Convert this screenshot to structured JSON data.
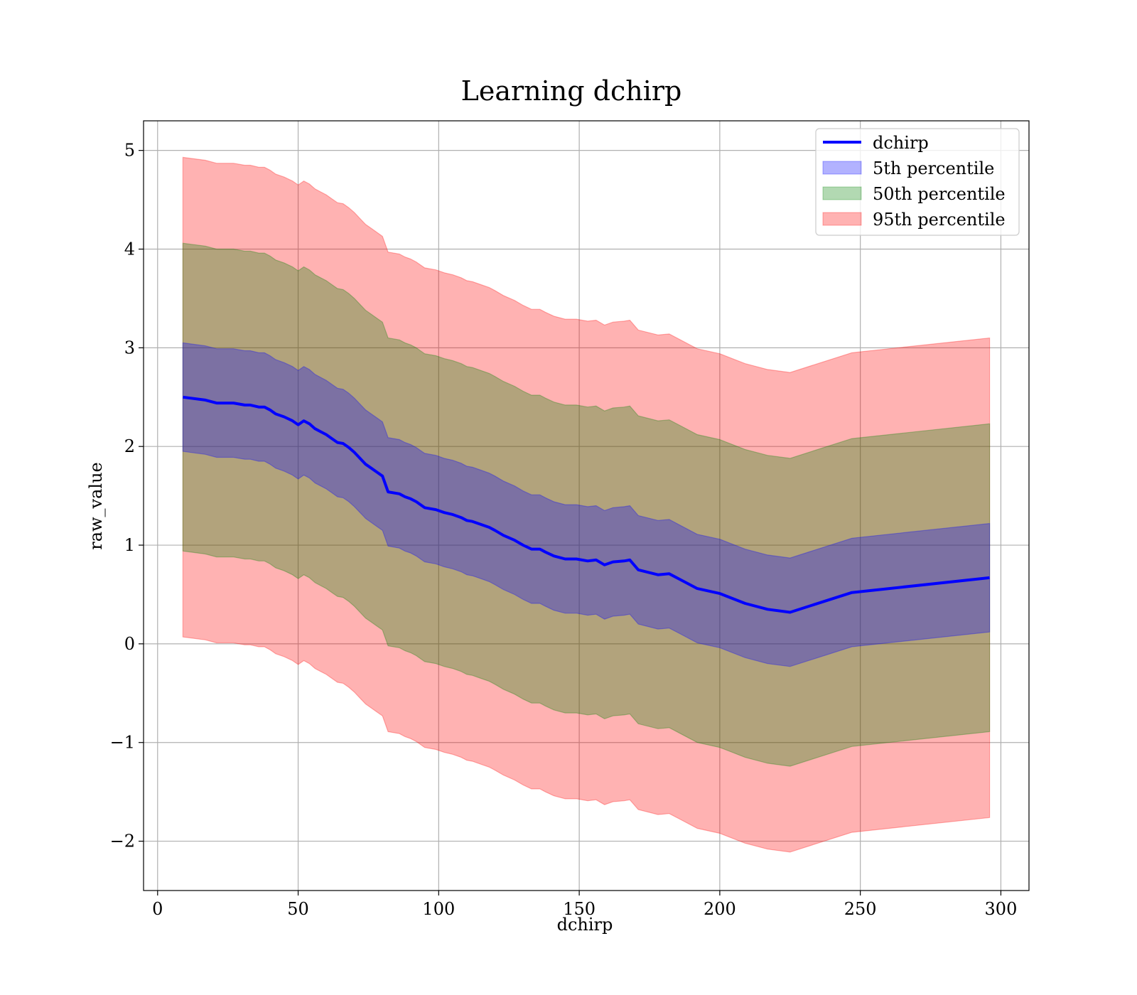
{
  "chart_data": {
    "type": "line",
    "title": "Learning dchirp",
    "xlabel": "dchirp",
    "ylabel": "raw_value",
    "xlim": [
      -5,
      310
    ],
    "ylim": [
      -2.5,
      5.3
    ],
    "xticks": [
      0,
      50,
      100,
      150,
      200,
      250,
      300
    ],
    "yticks": [
      -2,
      -1,
      0,
      1,
      2,
      3,
      4,
      5
    ],
    "xtick_labels": [
      "0",
      "50",
      "100",
      "150",
      "200",
      "250",
      "300"
    ],
    "ytick_labels": [
      "−2",
      "−1",
      "0",
      "1",
      "2",
      "3",
      "4",
      "5"
    ],
    "grid": true,
    "legend_position": "top-right",
    "x": [
      9,
      17,
      21,
      27,
      31,
      33,
      36,
      38,
      40,
      42,
      45,
      48,
      50,
      52,
      54,
      56,
      58,
      60,
      62,
      64,
      66,
      68,
      70,
      72,
      74,
      76,
      78,
      80,
      82,
      86,
      88,
      90,
      92,
      95,
      99,
      102,
      105,
      108,
      110,
      112,
      115,
      118,
      120,
      123,
      127,
      130,
      133,
      136,
      138,
      141,
      145,
      149,
      153,
      156,
      159,
      162,
      166,
      168,
      171,
      178,
      182,
      186,
      192,
      200,
      209,
      217,
      225,
      247,
      296
    ],
    "series": [
      {
        "name": "dchirp",
        "kind": "line",
        "color": "#0000ff",
        "values": [
          2.5,
          2.47,
          2.44,
          2.44,
          2.42,
          2.42,
          2.4,
          2.4,
          2.37,
          2.33,
          2.3,
          2.26,
          2.22,
          2.26,
          2.23,
          2.18,
          2.15,
          2.12,
          2.08,
          2.04,
          2.03,
          1.99,
          1.94,
          1.88,
          1.82,
          1.78,
          1.74,
          1.7,
          1.54,
          1.52,
          1.49,
          1.47,
          1.44,
          1.38,
          1.36,
          1.33,
          1.31,
          1.28,
          1.25,
          1.24,
          1.21,
          1.18,
          1.15,
          1.1,
          1.05,
          1.0,
          0.96,
          0.96,
          0.93,
          0.89,
          0.86,
          0.86,
          0.84,
          0.85,
          0.8,
          0.83,
          0.84,
          0.85,
          0.75,
          0.7,
          0.71,
          0.65,
          0.56,
          0.51,
          0.41,
          0.35,
          0.32,
          0.52,
          0.67
        ]
      },
      {
        "name": "5th percentile",
        "kind": "band",
        "color": "#0000ff",
        "half_width": 0.55
      },
      {
        "name": "50th percentile",
        "kind": "band",
        "color": "#008000",
        "half_width": 1.56
      },
      {
        "name": "95th percentile",
        "kind": "band",
        "color": "#ff0000",
        "half_width": 2.43
      }
    ]
  }
}
